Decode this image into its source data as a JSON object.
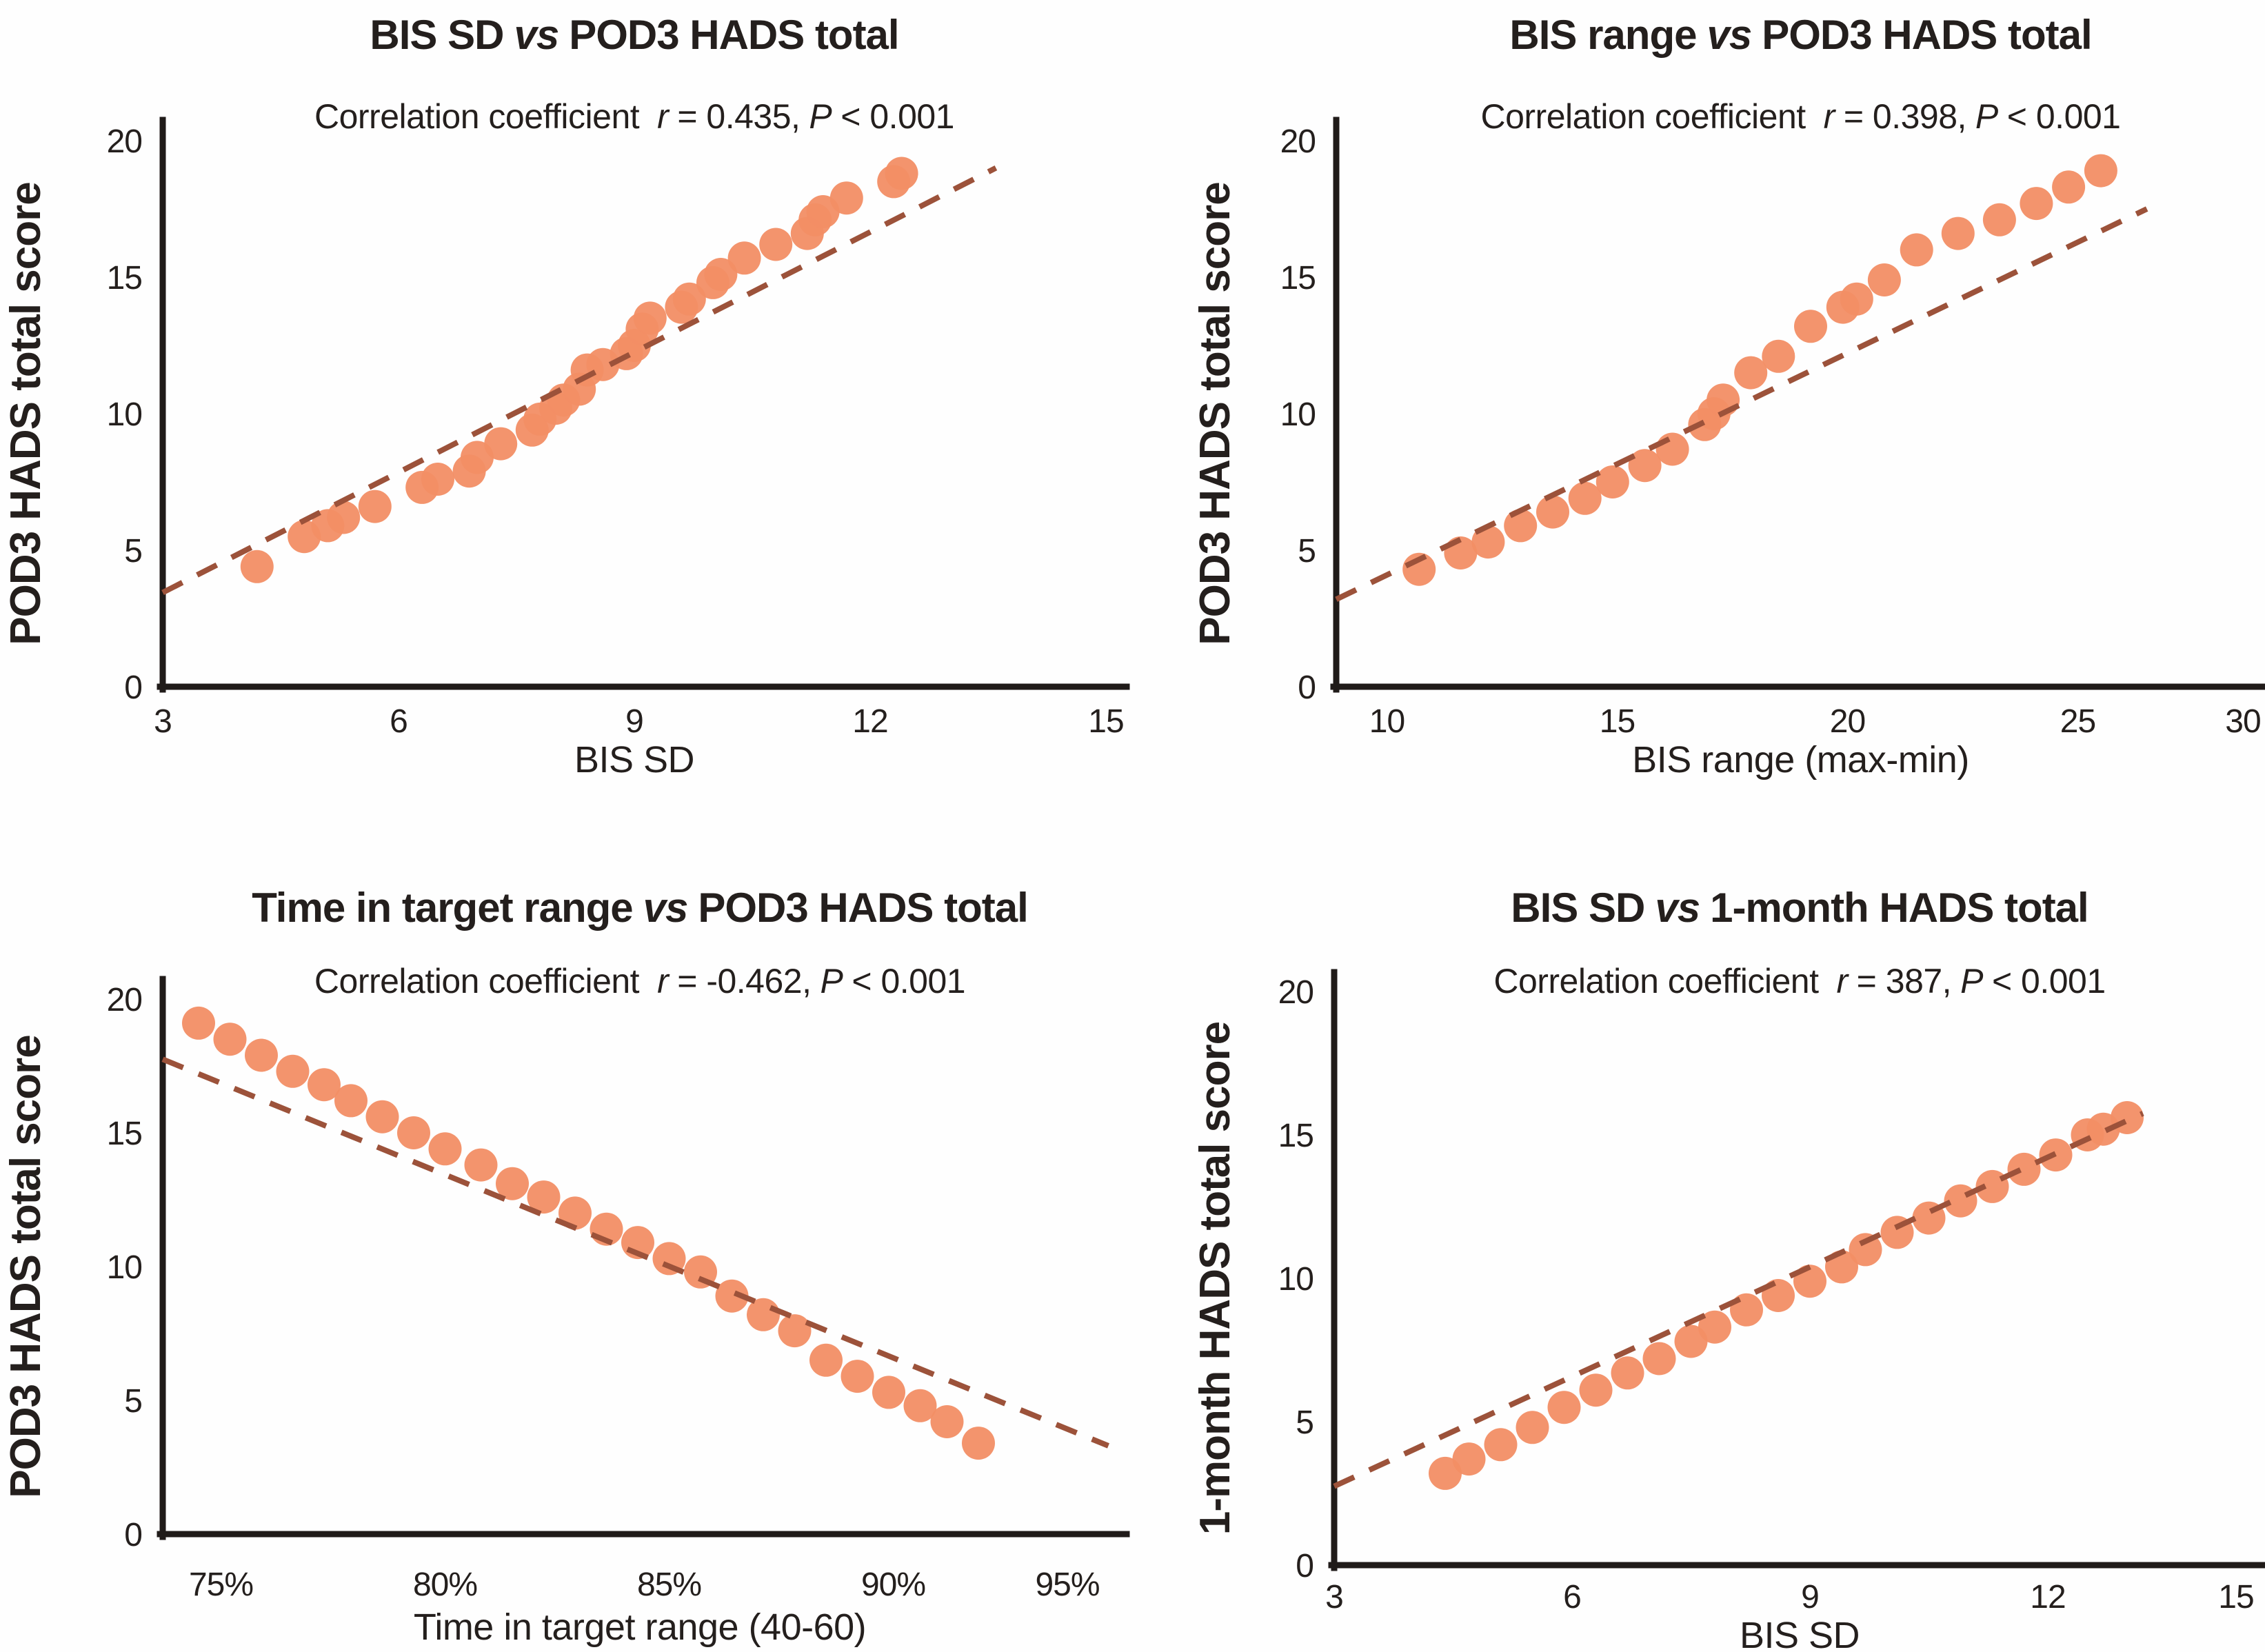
{
  "styles": {
    "background": "#fefefe",
    "point_color": "#f28e65",
    "trend_color": "#9c523a",
    "axis_color": "#201b19",
    "text_color": "#241f1d"
  },
  "chart_data": [
    {
      "type": "scatter",
      "panel": "top-left",
      "title": {
        "pre": "BIS SD",
        "vs": "vs",
        "post": "POD3 HADS total"
      },
      "subtitle": {
        "prefix": "Correlation coefficient",
        "r_sym": "r",
        "r_eq": "= 0.435,",
        "p_sym": "P",
        "p_eq": "< 0.001"
      },
      "xlabel": "BIS SD",
      "ylabel": "POD3 HADS total score",
      "xlim": [
        3,
        15
      ],
      "ylim": [
        0,
        20
      ],
      "grid": false,
      "legend": "none",
      "xticks": [
        {
          "v": 3,
          "label": "3"
        },
        {
          "v": 6,
          "label": "6"
        },
        {
          "v": 9,
          "label": "9"
        },
        {
          "v": 12,
          "label": "12"
        },
        {
          "v": 15,
          "label": "15"
        }
      ],
      "yticks": [
        {
          "v": 0,
          "label": "0"
        },
        {
          "v": 5,
          "label": "5"
        },
        {
          "v": 10,
          "label": "10"
        },
        {
          "v": 15,
          "label": "15"
        },
        {
          "v": 20,
          "label": "20"
        }
      ],
      "trend": {
        "x1": 3.0,
        "y1": 3.45,
        "x2": 13.6,
        "y2": 19.0
      },
      "points": [
        [
          4.2,
          4.4
        ],
        [
          4.8,
          5.5
        ],
        [
          5.1,
          5.9
        ],
        [
          5.3,
          6.2
        ],
        [
          5.7,
          6.6
        ],
        [
          6.3,
          7.3
        ],
        [
          6.5,
          7.6
        ],
        [
          6.9,
          7.9
        ],
        [
          7.0,
          8.4
        ],
        [
          7.3,
          8.9
        ],
        [
          7.7,
          9.4
        ],
        [
          7.8,
          9.8
        ],
        [
          8.0,
          10.2
        ],
        [
          8.1,
          10.5
        ],
        [
          8.3,
          10.9
        ],
        [
          8.4,
          11.6
        ],
        [
          8.6,
          11.8
        ],
        [
          8.9,
          12.2
        ],
        [
          9.0,
          12.5
        ],
        [
          9.1,
          13.1
        ],
        [
          9.2,
          13.5
        ],
        [
          9.6,
          13.9
        ],
        [
          9.7,
          14.2
        ],
        [
          10.0,
          14.8
        ],
        [
          10.1,
          15.1
        ],
        [
          10.4,
          15.7
        ],
        [
          10.8,
          16.2
        ],
        [
          11.2,
          16.6
        ],
        [
          11.3,
          17.1
        ],
        [
          11.4,
          17.4
        ],
        [
          11.7,
          17.9
        ],
        [
          12.3,
          18.5
        ],
        [
          12.4,
          18.8
        ]
      ]
    },
    {
      "type": "scatter",
      "panel": "top-right",
      "title": {
        "pre": "BIS range",
        "vs": "vs",
        "post": "POD3 HADS total"
      },
      "subtitle": {
        "prefix": "Correlation coefficient",
        "r_sym": "r",
        "r_eq": "= 0.398,",
        "p_sym": "P",
        "p_eq": "< 0.001"
      },
      "xlabel": "BIS range (max-min)",
      "ylabel": "POD3 HADS total score",
      "xlim": [
        8.9,
        30
      ],
      "ylim": [
        0,
        20
      ],
      "grid": false,
      "legend": "none",
      "xticks": [
        {
          "v": 10,
          "label": "10"
        },
        {
          "v": 15,
          "label": "15"
        },
        {
          "v": 20,
          "label": "20"
        },
        {
          "v": 25,
          "label": "25"
        },
        {
          "v": 30,
          "label": "30"
        }
      ],
      "yticks": [
        {
          "v": 0,
          "label": "0"
        },
        {
          "v": 5,
          "label": "5"
        },
        {
          "v": 10,
          "label": "10"
        },
        {
          "v": 15,
          "label": "15"
        },
        {
          "v": 20,
          "label": "20"
        }
      ],
      "trend": {
        "x1": 8.9,
        "y1": 3.2,
        "x2": 26.5,
        "y2": 17.5
      },
      "points": [
        [
          10.7,
          4.3
        ],
        [
          11.6,
          4.9
        ],
        [
          12.2,
          5.3
        ],
        [
          12.9,
          5.9
        ],
        [
          13.6,
          6.4
        ],
        [
          14.3,
          6.9
        ],
        [
          14.9,
          7.5
        ],
        [
          15.6,
          8.1
        ],
        [
          16.2,
          8.7
        ],
        [
          16.9,
          9.6
        ],
        [
          17.1,
          10.0
        ],
        [
          17.3,
          10.5
        ],
        [
          17.9,
          11.5
        ],
        [
          18.5,
          12.1
        ],
        [
          19.2,
          13.2
        ],
        [
          19.9,
          13.9
        ],
        [
          20.2,
          14.2
        ],
        [
          20.8,
          14.9
        ],
        [
          21.5,
          16.0
        ],
        [
          22.4,
          16.6
        ],
        [
          23.3,
          17.1
        ],
        [
          24.1,
          17.7
        ],
        [
          24.8,
          18.3
        ],
        [
          25.5,
          18.9
        ]
      ]
    },
    {
      "type": "scatter",
      "panel": "bottom-left",
      "title": {
        "pre": "Time in target range",
        "vs": "vs",
        "post": "POD3 HADS total"
      },
      "subtitle": {
        "prefix": "Correlation coefficient",
        "r_sym": "r",
        "r_eq": "= -0.462,",
        "p_sym": "P",
        "p_eq": "< 0.001"
      },
      "xlabel": "Time in target range (40-60)",
      "ylabel": "POD3 HADS total score",
      "xlim": [
        73.7,
        95
      ],
      "ylim": [
        0,
        20
      ],
      "grid": false,
      "legend": "none",
      "xticks": [
        {
          "v": 75,
          "label": "75%"
        },
        {
          "v": 80,
          "label": "80%"
        },
        {
          "v": 85,
          "label": "85%"
        },
        {
          "v": 90,
          "label": "90%"
        },
        {
          "v": 95,
          "label": "95%"
        }
      ],
      "yticks": [
        {
          "v": 0,
          "label": "0"
        },
        {
          "v": 5,
          "label": "5"
        },
        {
          "v": 10,
          "label": "10"
        },
        {
          "v": 15,
          "label": "15"
        },
        {
          "v": 20,
          "label": "20"
        }
      ],
      "trend": {
        "x1": 73.7,
        "y1": 17.75,
        "x2": 94.8,
        "y2": 3.3
      },
      "points": [
        [
          74.5,
          19.1
        ],
        [
          75.2,
          18.5
        ],
        [
          75.9,
          17.9
        ],
        [
          76.6,
          17.3
        ],
        [
          77.3,
          16.8
        ],
        [
          77.9,
          16.2
        ],
        [
          78.6,
          15.6
        ],
        [
          79.3,
          15.0
        ],
        [
          80.0,
          14.4
        ],
        [
          80.8,
          13.8
        ],
        [
          81.5,
          13.1
        ],
        [
          82.2,
          12.6
        ],
        [
          82.9,
          12.0
        ],
        [
          83.6,
          11.4
        ],
        [
          84.3,
          10.9
        ],
        [
          85.0,
          10.3
        ],
        [
          85.7,
          9.8
        ],
        [
          86.4,
          8.9
        ],
        [
          87.1,
          8.2
        ],
        [
          87.8,
          7.6
        ],
        [
          88.5,
          6.5
        ],
        [
          89.2,
          5.9
        ],
        [
          89.9,
          5.3
        ],
        [
          90.6,
          4.8
        ],
        [
          91.2,
          4.2
        ],
        [
          91.9,
          3.4
        ]
      ]
    },
    {
      "type": "scatter",
      "panel": "bottom-right",
      "title": {
        "pre": "BIS SD",
        "vs": "vs",
        "post": "1-month HADS total"
      },
      "subtitle": {
        "prefix": "Correlation coefficient",
        "r_sym": "r",
        "r_eq": "= 387,",
        "p_sym": "P",
        "p_eq": "< 0.001"
      },
      "xlabel": "BIS SD",
      "ylabel": "1-month HADS total score",
      "xlim": [
        3,
        15
      ],
      "ylim": [
        0,
        20
      ],
      "grid": false,
      "legend": "none",
      "xticks": [
        {
          "v": 3,
          "label": "3"
        },
        {
          "v": 6,
          "label": "6"
        },
        {
          "v": 9,
          "label": "9"
        },
        {
          "v": 12,
          "label": "12"
        },
        {
          "v": 15,
          "label": "15"
        }
      ],
      "yticks": [
        {
          "v": 0,
          "label": "0"
        },
        {
          "v": 5,
          "label": "5"
        },
        {
          "v": 10,
          "label": "10"
        },
        {
          "v": 15,
          "label": "15"
        },
        {
          "v": 20,
          "label": "20"
        }
      ],
      "trend": {
        "x1": 3.0,
        "y1": 2.75,
        "x2": 13.2,
        "y2": 15.75
      },
      "points": [
        [
          4.4,
          3.2
        ],
        [
          4.7,
          3.7
        ],
        [
          5.1,
          4.2
        ],
        [
          5.5,
          4.8
        ],
        [
          5.9,
          5.5
        ],
        [
          6.3,
          6.1
        ],
        [
          6.7,
          6.7
        ],
        [
          7.1,
          7.2
        ],
        [
          7.5,
          7.8
        ],
        [
          7.8,
          8.3
        ],
        [
          8.2,
          8.9
        ],
        [
          8.6,
          9.4
        ],
        [
          9.0,
          9.9
        ],
        [
          9.4,
          10.4
        ],
        [
          9.7,
          11.0
        ],
        [
          10.1,
          11.6
        ],
        [
          10.5,
          12.1
        ],
        [
          10.9,
          12.7
        ],
        [
          11.3,
          13.2
        ],
        [
          11.7,
          13.8
        ],
        [
          12.1,
          14.3
        ],
        [
          12.5,
          15.0
        ],
        [
          12.7,
          15.2
        ],
        [
          13.0,
          15.6
        ]
      ]
    }
  ]
}
